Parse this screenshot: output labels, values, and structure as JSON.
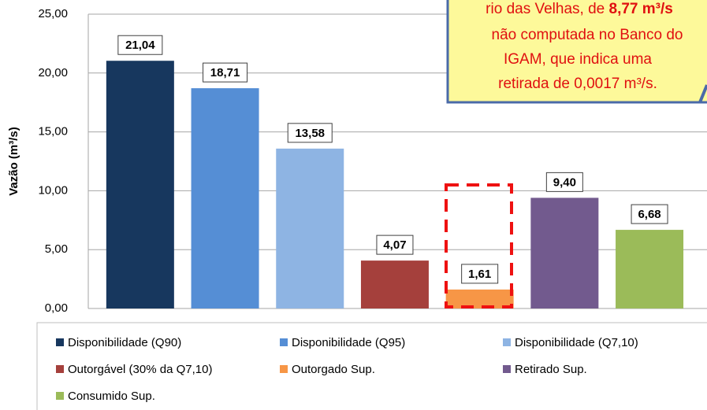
{
  "chart_data": {
    "type": "bar",
    "y_axis_label": "Vazão (m³/s)",
    "categories": [
      "Disponibilidade (Q90)",
      "Disponibilidade (Q95)",
      "Disponibilidade (Q7,10)",
      "Outorgável (30% da Q7,10)",
      "Outorgado Sup.",
      "Retirado Sup.",
      "Consumido Sup."
    ],
    "values": [
      21.04,
      18.71,
      13.58,
      4.07,
      1.61,
      9.4,
      6.68
    ],
    "value_labels": [
      "21,04",
      "18,71",
      "13,58",
      "4,07",
      "1,61",
      "9,40",
      "6,68"
    ],
    "colors": [
      "#17375e",
      "#558ed5",
      "#8eb4e3",
      "#a5403c",
      "#f79646",
      "#725a8e",
      "#9bbb59"
    ],
    "ylim": [
      0,
      25
    ],
    "yticks": [
      {
        "value": 0,
        "label": "0,00"
      },
      {
        "value": 5,
        "label": "5,00"
      },
      {
        "value": 10,
        "label": "10,00"
      },
      {
        "value": 15,
        "label": "15,00"
      },
      {
        "value": 20,
        "label": "20,00"
      },
      {
        "value": 25,
        "label": "25,00"
      }
    ],
    "grid": true,
    "legend": "bottom",
    "annotation": {
      "line1": "rio das Velhas, de ",
      "line1_bold": "8,77 m³/s",
      "lines": [
        "não computada no Banco do",
        "IGAM, que indica uma",
        "retirada de 0,0017 m³/s."
      ]
    }
  }
}
